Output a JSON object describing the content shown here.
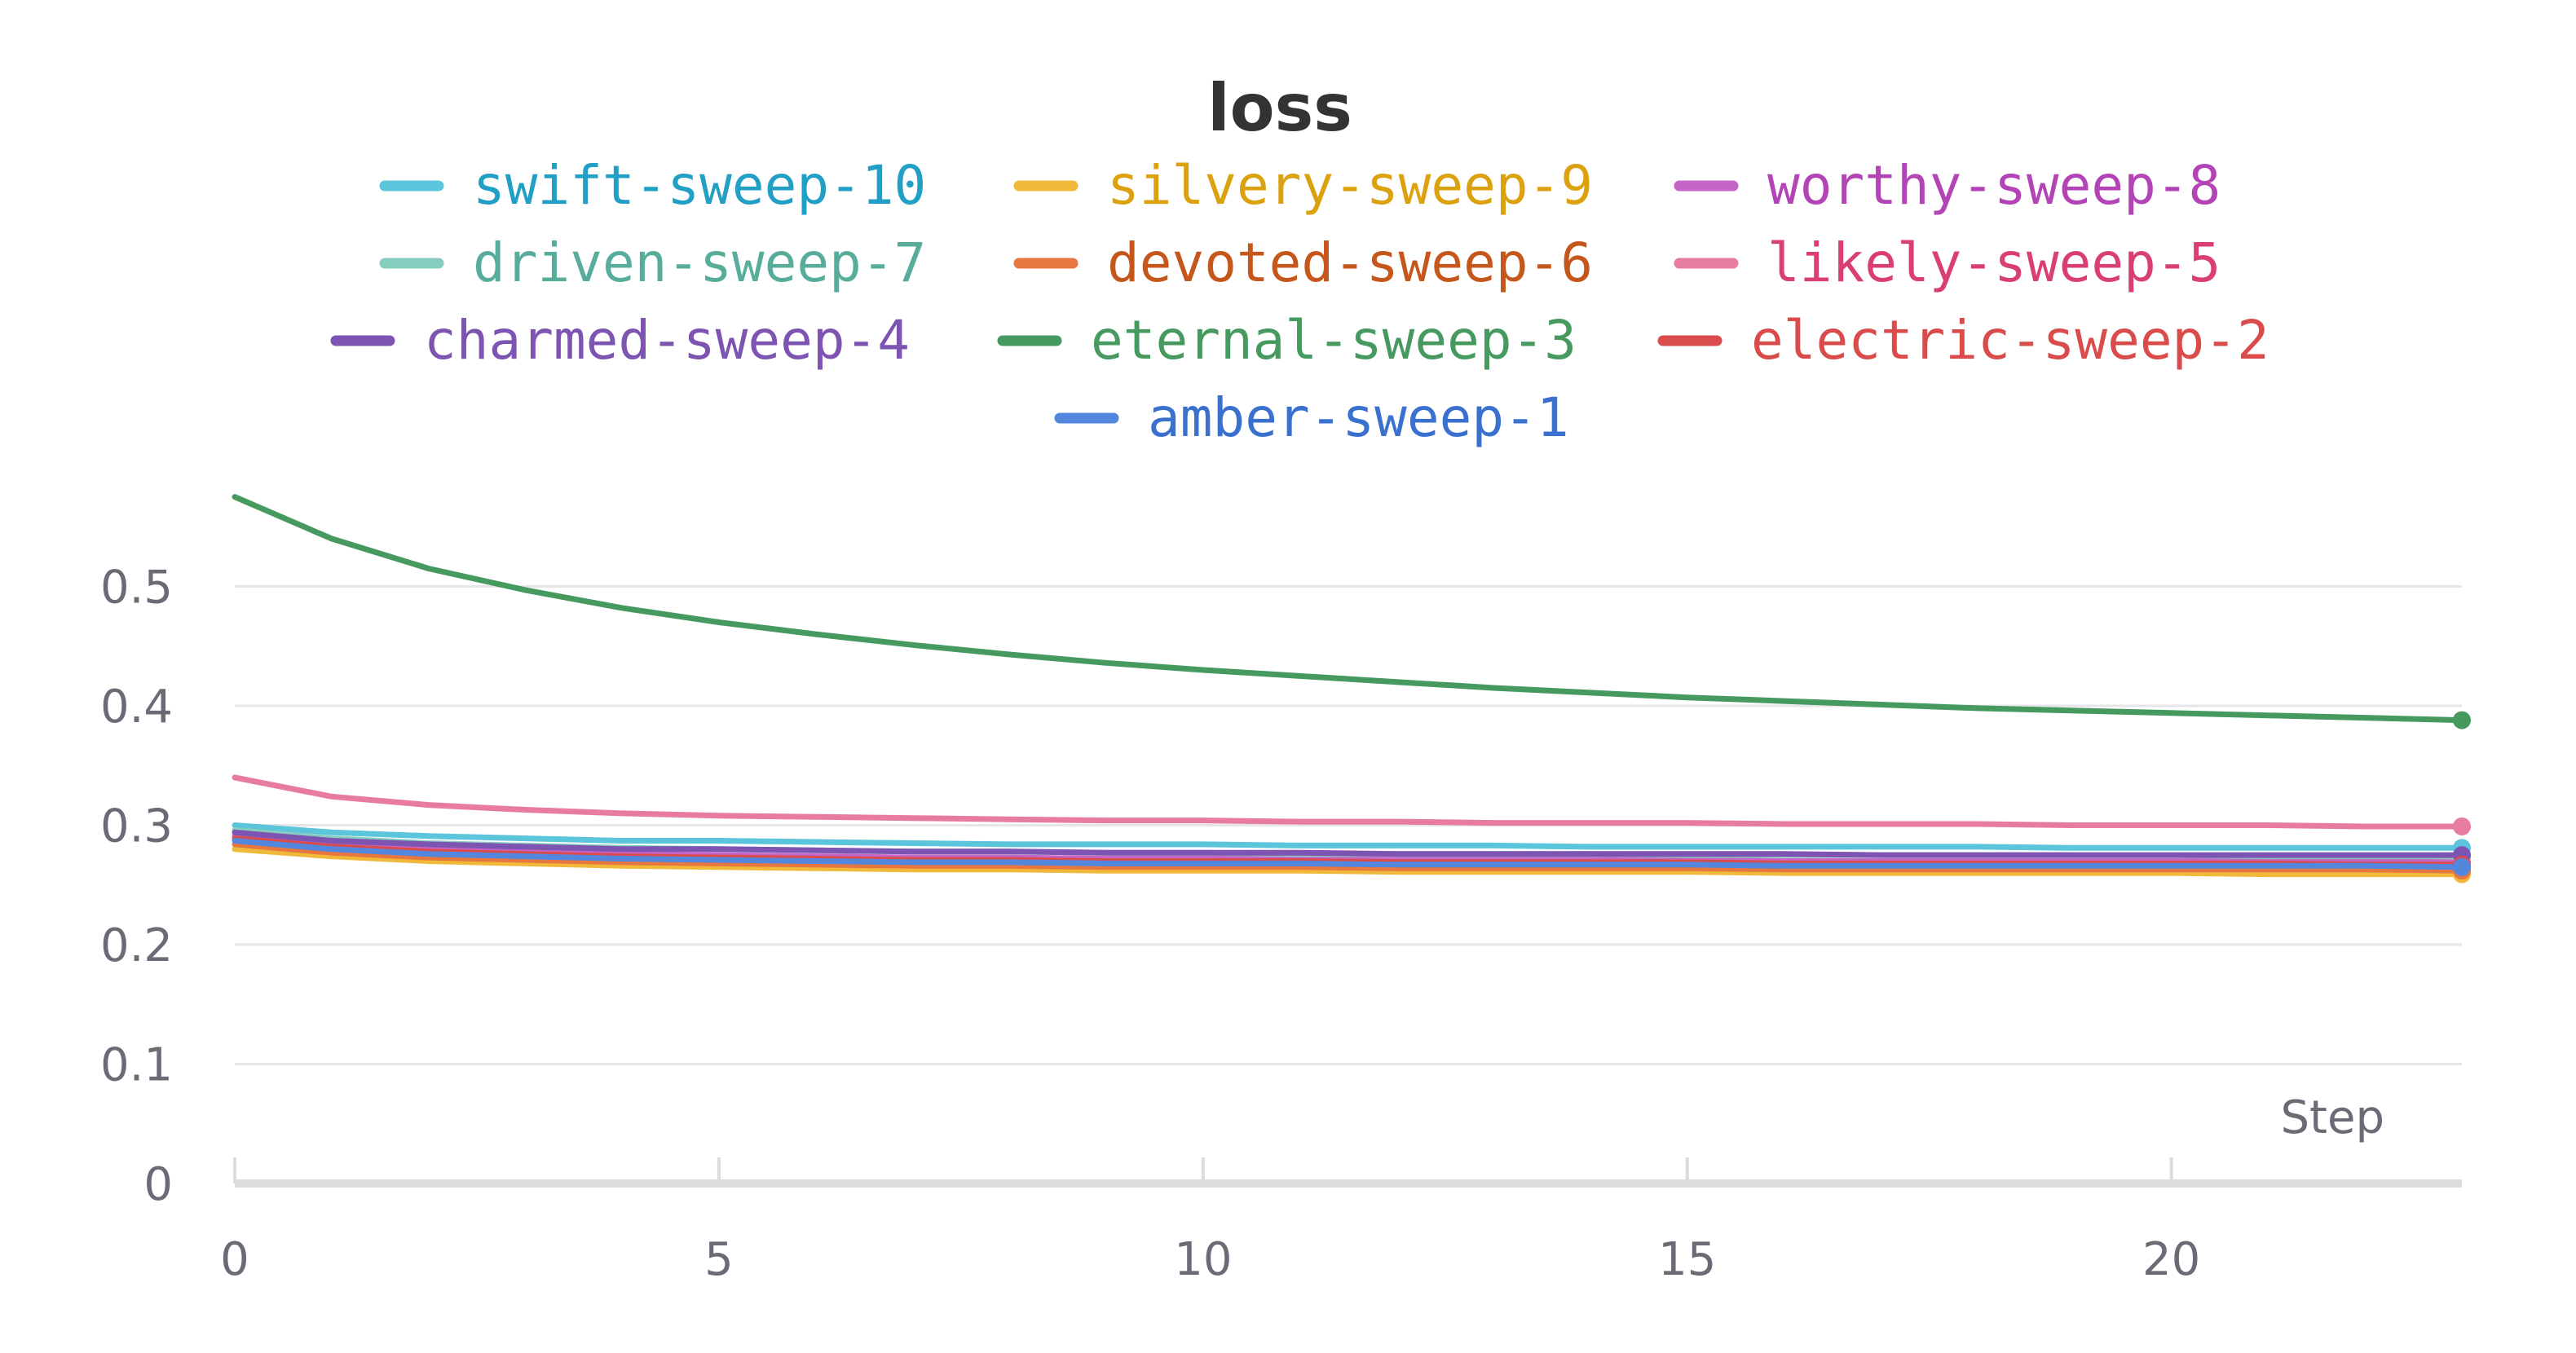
{
  "chart_data": {
    "type": "line",
    "title": "loss",
    "xlabel": "Step",
    "ylabel": "",
    "xlim": [
      0,
      23
    ],
    "ylim": [
      0,
      0.55
    ],
    "x_ticks": [
      0,
      5,
      10,
      15,
      20
    ],
    "y_ticks": [
      0,
      0.1,
      0.2,
      0.3,
      0.4,
      0.5
    ],
    "y_tick_labels": [
      "0",
      "0.1",
      "0.2",
      "0.3",
      "0.4",
      "0.5"
    ],
    "grid": true,
    "legend": "top-center",
    "x": [
      0,
      1,
      2,
      3,
      4,
      5,
      6,
      7,
      8,
      9,
      10,
      11,
      12,
      13,
      14,
      15,
      16,
      17,
      18,
      19,
      20,
      21,
      22,
      23
    ],
    "series": [
      {
        "name": "swift-sweep-10",
        "color": "#5bc5db",
        "label_color": "#229fc4",
        "values": [
          0.3,
          0.294,
          0.291,
          0.289,
          0.287,
          0.287,
          0.286,
          0.285,
          0.284,
          0.284,
          0.284,
          0.283,
          0.283,
          0.283,
          0.282,
          0.282,
          0.282,
          0.282,
          0.282,
          0.281,
          0.281,
          0.281,
          0.281,
          0.281
        ]
      },
      {
        "name": "silvery-sweep-9",
        "color": "#f0b93a",
        "label_color": "#dca10e",
        "values": [
          0.28,
          0.274,
          0.27,
          0.268,
          0.266,
          0.265,
          0.264,
          0.263,
          0.263,
          0.262,
          0.262,
          0.262,
          0.261,
          0.261,
          0.261,
          0.261,
          0.26,
          0.26,
          0.26,
          0.26,
          0.26,
          0.259,
          0.259,
          0.259
        ]
      },
      {
        "name": "worthy-sweep-8",
        "color": "#c565c7",
        "label_color": "#b344b6",
        "values": [
          0.291,
          0.284,
          0.28,
          0.278,
          0.276,
          0.275,
          0.274,
          0.273,
          0.273,
          0.272,
          0.272,
          0.272,
          0.271,
          0.271,
          0.271,
          0.271,
          0.27,
          0.27,
          0.27,
          0.27,
          0.27,
          0.27,
          0.27,
          0.269
        ]
      },
      {
        "name": "driven-sweep-7",
        "color": "#87cdbd",
        "label_color": "#57ad9a",
        "values": [
          0.296,
          0.289,
          0.285,
          0.283,
          0.281,
          0.28,
          0.279,
          0.278,
          0.278,
          0.277,
          0.277,
          0.276,
          0.276,
          0.276,
          0.276,
          0.275,
          0.275,
          0.275,
          0.275,
          0.275,
          0.275,
          0.274,
          0.274,
          0.274
        ]
      },
      {
        "name": "devoted-sweep-6",
        "color": "#e8763f",
        "label_color": "#c5561c",
        "values": [
          0.284,
          0.277,
          0.273,
          0.271,
          0.269,
          0.268,
          0.267,
          0.266,
          0.266,
          0.265,
          0.265,
          0.265,
          0.264,
          0.264,
          0.264,
          0.264,
          0.263,
          0.263,
          0.263,
          0.263,
          0.263,
          0.263,
          0.263,
          0.262
        ]
      },
      {
        "name": "likely-sweep-5",
        "color": "#e87ba0",
        "label_color": "#d93e74",
        "values": [
          0.34,
          0.324,
          0.317,
          0.313,
          0.31,
          0.308,
          0.307,
          0.306,
          0.305,
          0.304,
          0.304,
          0.303,
          0.303,
          0.302,
          0.302,
          0.302,
          0.301,
          0.301,
          0.301,
          0.3,
          0.3,
          0.3,
          0.299,
          0.299
        ]
      },
      {
        "name": "charmed-sweep-4",
        "color": "#7d54b2",
        "label_color": "#7d54b2",
        "values": [
          0.294,
          0.287,
          0.284,
          0.282,
          0.28,
          0.28,
          0.279,
          0.278,
          0.278,
          0.277,
          0.277,
          0.277,
          0.276,
          0.276,
          0.276,
          0.276,
          0.276,
          0.275,
          0.275,
          0.275,
          0.275,
          0.275,
          0.275,
          0.275
        ]
      },
      {
        "name": "eternal-sweep-3",
        "color": "#479a5f",
        "label_color": "#479a5f",
        "values": [
          0.575,
          0.54,
          0.515,
          0.497,
          0.482,
          0.47,
          0.46,
          0.451,
          0.443,
          0.436,
          0.43,
          0.425,
          0.42,
          0.415,
          0.411,
          0.407,
          0.404,
          0.401,
          0.398,
          0.396,
          0.394,
          0.392,
          0.39,
          0.388
        ]
      },
      {
        "name": "electric-sweep-2",
        "color": "#da4c4c",
        "label_color": "#da4c4c",
        "values": [
          0.289,
          0.282,
          0.278,
          0.276,
          0.274,
          0.273,
          0.272,
          0.271,
          0.271,
          0.27,
          0.27,
          0.27,
          0.269,
          0.269,
          0.269,
          0.269,
          0.268,
          0.268,
          0.268,
          0.268,
          0.268,
          0.268,
          0.267,
          0.267
        ]
      },
      {
        "name": "amber-sweep-1",
        "color": "#5387dd",
        "label_color": "#3a71cf",
        "values": [
          0.287,
          0.28,
          0.276,
          0.274,
          0.272,
          0.271,
          0.27,
          0.269,
          0.269,
          0.268,
          0.268,
          0.268,
          0.267,
          0.267,
          0.267,
          0.267,
          0.266,
          0.266,
          0.266,
          0.266,
          0.266,
          0.266,
          0.266,
          0.265
        ]
      }
    ]
  }
}
